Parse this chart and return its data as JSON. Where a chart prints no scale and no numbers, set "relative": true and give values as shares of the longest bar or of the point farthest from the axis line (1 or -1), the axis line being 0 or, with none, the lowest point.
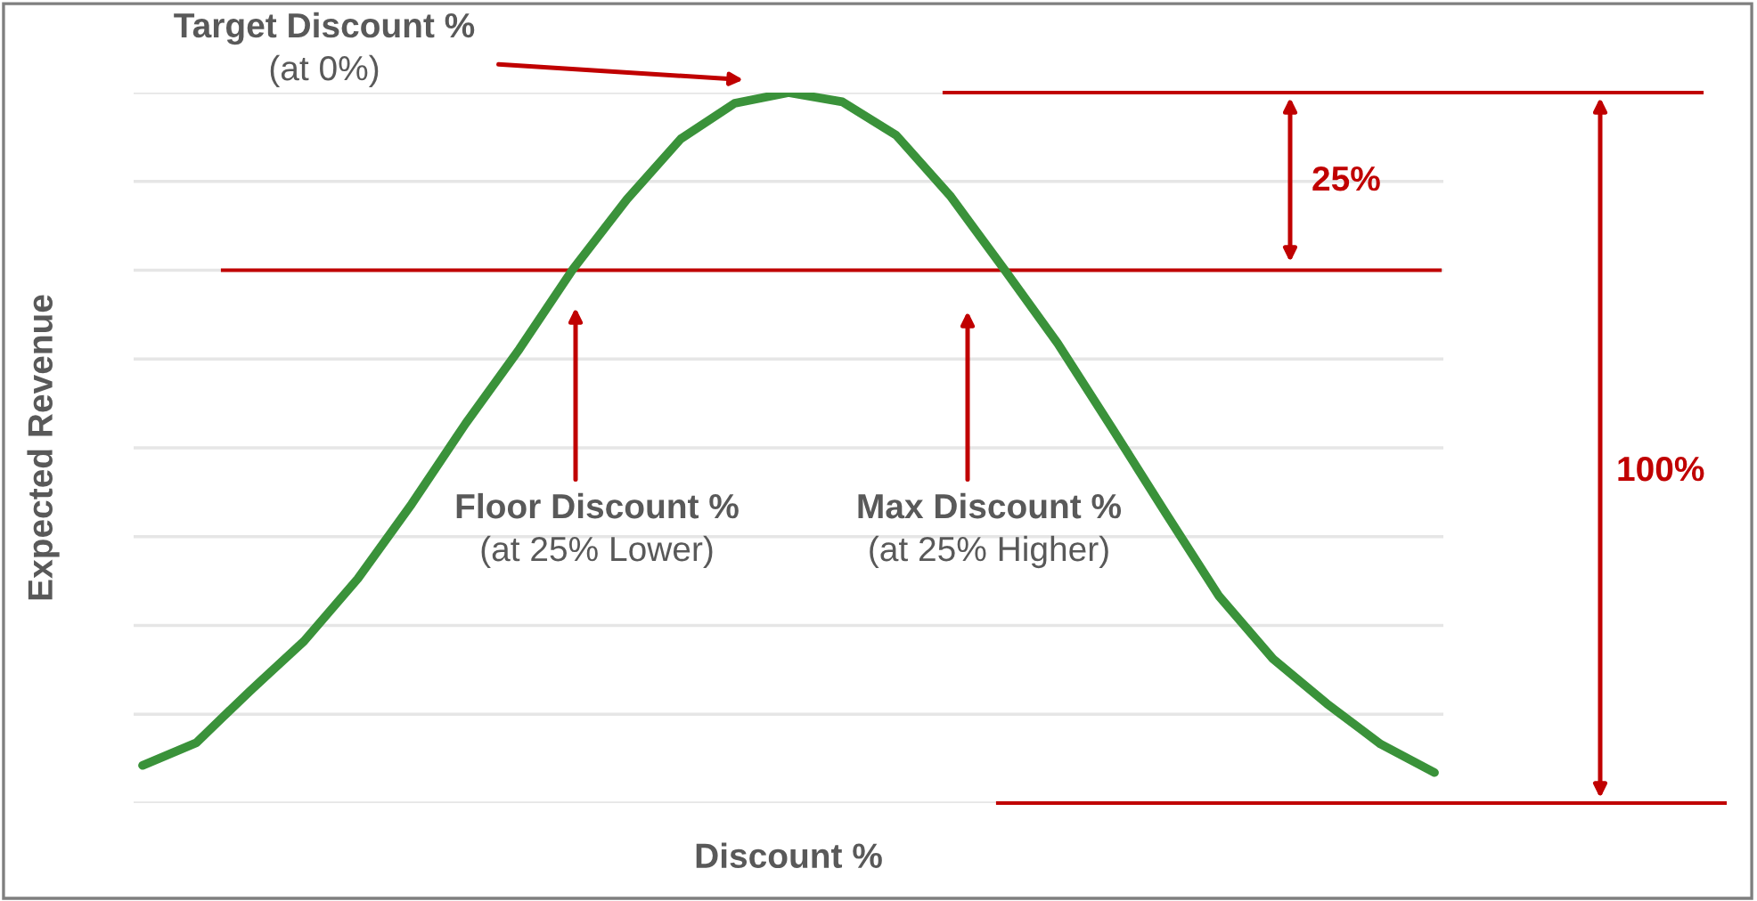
{
  "chart_data": {
    "type": "line",
    "relative": true,
    "xlabel": "Discount %",
    "ylabel": "Expected Revenue",
    "categories": [
      null,
      null,
      null,
      null,
      null,
      null,
      null,
      null,
      null,
      null,
      null,
      null,
      null,
      null,
      null,
      null,
      null,
      null,
      null,
      null,
      null,
      null,
      null,
      null,
      null
    ],
    "series": [
      {
        "color": "#3a923a",
        "values": [
          0.053,
          0.085,
          0.158,
          0.228,
          0.316,
          0.421,
          0.534,
          0.639,
          0.752,
          0.85,
          0.935,
          0.985,
          1,
          0.987,
          0.94,
          0.855,
          0.752,
          0.647,
          0.529,
          0.409,
          0.291,
          0.203,
          0.14,
          0.083,
          0.043
        ]
      }
    ],
    "ref_lines": [
      {
        "axis": "y",
        "value": 0.75,
        "color": "#c00000"
      },
      {
        "axis": "y",
        "value": 1,
        "color": "#c00000"
      },
      {
        "axis": "y",
        "value": 0,
        "color": "#c00000"
      }
    ],
    "annotations": [
      "Target Discount %\n(at 0%)",
      "Floor Discount %\n(at 25% Lower)",
      "Max Discount %\n(at 25% Higher)",
      "25%",
      "100%"
    ],
    "grid": "y",
    "marker": "none",
    "line_style": "solid"
  }
}
